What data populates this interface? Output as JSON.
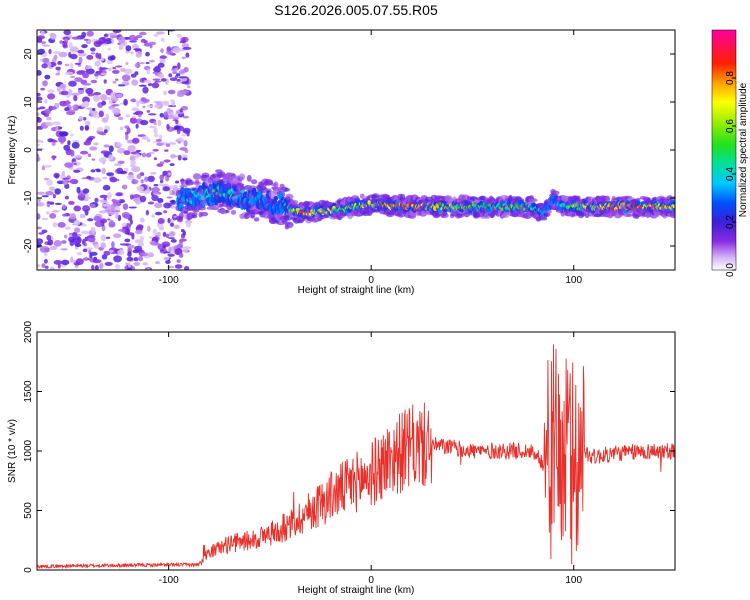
{
  "figure": {
    "title": "S126.2026.005.07.55.R05"
  },
  "chart_data": [
    {
      "type": "heatmap",
      "xlabel": "Height of straight line (km)",
      "ylabel": "Frequency (Hz)",
      "xlim": [
        -165,
        150
      ],
      "ylim": [
        -25,
        25
      ],
      "x_ticks": [
        -100,
        0,
        100
      ],
      "y_ticks": [
        -20,
        -10,
        0,
        10,
        20
      ],
      "colorbar": {
        "label": "Normalized spectral amplitude",
        "range": [
          0,
          1
        ],
        "ticks": [
          0.0,
          0.2,
          0.4,
          0.6,
          0.8
        ]
      },
      "signal_ridge": {
        "x": [
          -95,
          -85,
          -75,
          -65,
          -55,
          -45,
          -40,
          -35,
          -30,
          -25,
          -20,
          -15,
          -10,
          -5,
          0,
          10,
          20,
          30,
          40,
          50,
          60,
          70,
          80,
          85,
          90,
          95,
          100,
          110,
          120,
          130,
          140,
          150
        ],
        "y": [
          -10.5,
          -9.5,
          -8.5,
          -9.5,
          -10.5,
          -11,
          -12.5,
          -13,
          -13,
          -12.8,
          -12.5,
          -12.2,
          -12,
          -11.5,
          -11.2,
          -11.5,
          -11.8,
          -11.8,
          -11.8,
          -11.8,
          -11.8,
          -11.8,
          -11.8,
          -13,
          -10.5,
          -11.5,
          -11.8,
          -11.8,
          -11.8,
          -11.8,
          -11.8,
          -11.8
        ],
        "strength": [
          0.35,
          0.4,
          0.45,
          0.4,
          0.35,
          0.3,
          0.55,
          0.85,
          0.8,
          0.75,
          0.7,
          0.55,
          0.6,
          0.65,
          0.7,
          0.8,
          0.85,
          0.75,
          0.6,
          0.55,
          0.55,
          0.6,
          0.5,
          0.35,
          0.3,
          0.45,
          0.6,
          0.75,
          0.85,
          0.85,
          0.8,
          0.75
        ]
      },
      "noise_region_x": [
        -165,
        -90
      ]
    },
    {
      "type": "line",
      "xlabel": "Height of straight line (km)",
      "ylabel": "SNR (10 * v/v)",
      "xlim": [
        -165,
        150
      ],
      "ylim": [
        0,
        2000
      ],
      "x_ticks": [
        -100,
        0,
        100
      ],
      "y_ticks": [
        0,
        500,
        1000,
        1500,
        2000
      ],
      "series": [
        {
          "color": "#e8302a",
          "envelope_x": [
            -165,
            -120,
            -85,
            -80,
            -70,
            -60,
            -50,
            -40,
            -30,
            -20,
            -10,
            0,
            10,
            20,
            30,
            40,
            50,
            60,
            70,
            80,
            85,
            90,
            95,
            100,
            105,
            110,
            120,
            130,
            140,
            150
          ],
          "envelope_y": [
            30,
            40,
            45,
            150,
            220,
            250,
            300,
            380,
            500,
            620,
            720,
            800,
            950,
            1030,
            1050,
            1030,
            1000,
            1000,
            1000,
            1000,
            900,
            1000,
            950,
            900,
            1000,
            950,
            980,
            990,
            1000,
            1000
          ]
        }
      ]
    }
  ]
}
